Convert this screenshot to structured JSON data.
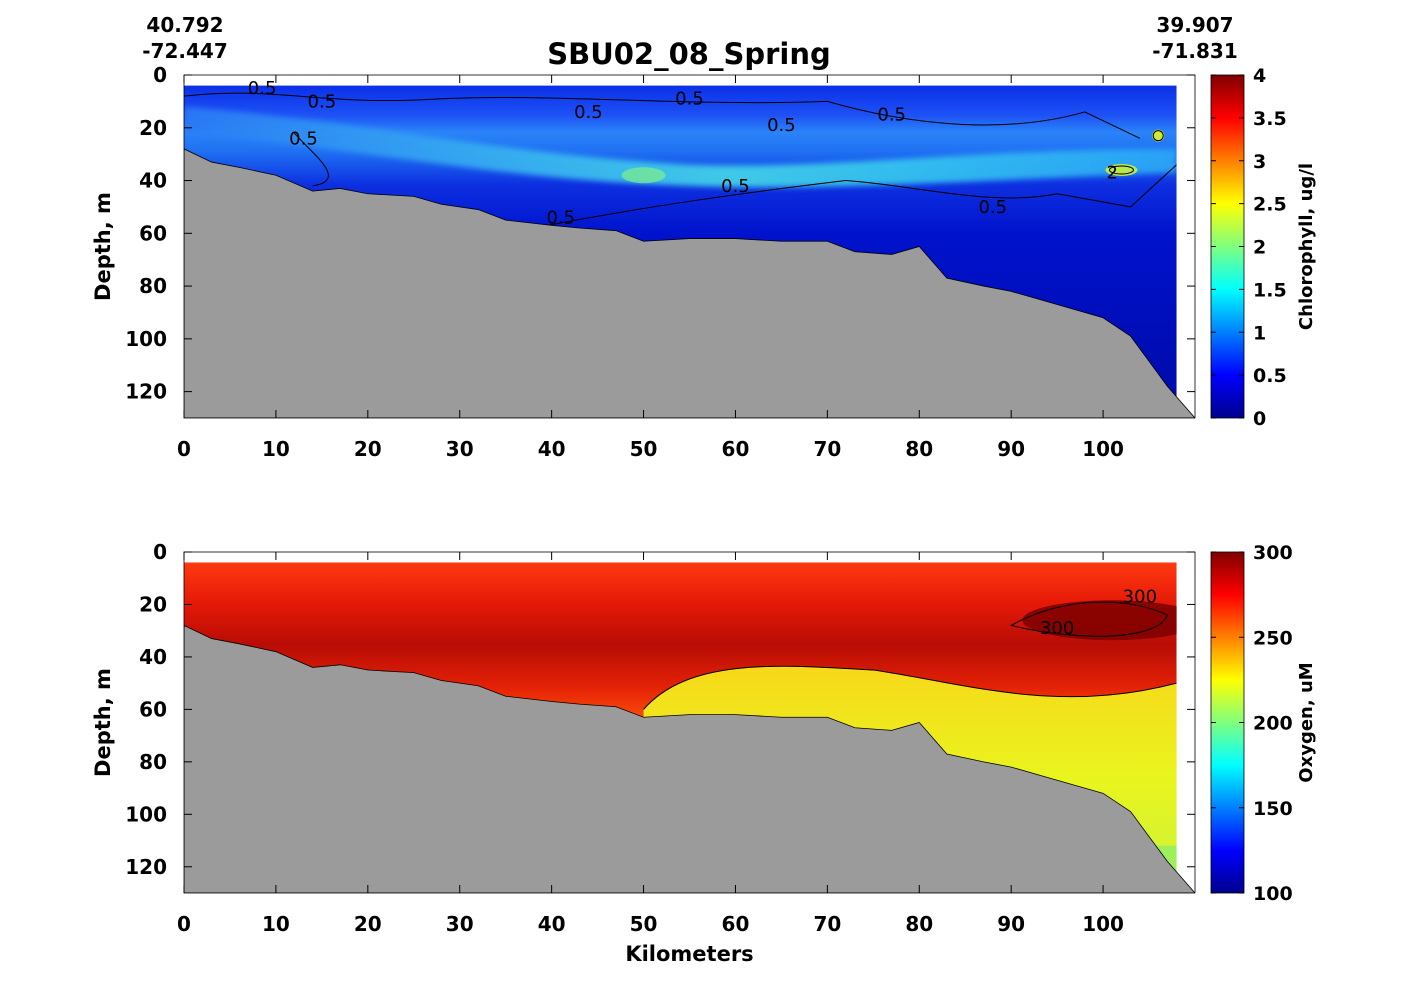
{
  "page": {
    "title": "SBU02_08_Spring",
    "start_lat": "40.792",
    "start_lon": "-72.447",
    "end_lat": "39.907",
    "end_lon": "-71.831"
  },
  "chart_data": [
    {
      "type": "heatmap",
      "title": "SBU02_08_Spring",
      "xlabel": "",
      "ylabel": "Depth, m",
      "colorbar_label": "Chlorophyll, ug/l",
      "xlim": [
        0,
        110
      ],
      "ylim": [
        130,
        0
      ],
      "x_ticks": [
        "0",
        "10",
        "20",
        "30",
        "40",
        "50",
        "60",
        "70",
        "80",
        "90",
        "100"
      ],
      "y_ticks": [
        "0",
        "20",
        "40",
        "60",
        "80",
        "100",
        "120"
      ],
      "colorbar_range": [
        0,
        4
      ],
      "colorbar_ticks": [
        "0",
        "0.5",
        "1",
        "1.5",
        "2",
        "2.5",
        "3",
        "3.5",
        "4"
      ],
      "colormap": "jet",
      "contour_labels": [
        "0.5",
        "0.5",
        "0.5",
        "0.5",
        "0.5",
        "0.5",
        "0.5",
        "0.5",
        "0.5",
        "0.5",
        "2"
      ],
      "bottom_depth": {
        "x": [
          0,
          3,
          6,
          10,
          14,
          17,
          20,
          25,
          28,
          32,
          35,
          40,
          43,
          47,
          50,
          55,
          60,
          65,
          70,
          73,
          77,
          80,
          83,
          87,
          90,
          95,
          100,
          103,
          107,
          110
        ],
        "depth": [
          28,
          33,
          35,
          38,
          44,
          43,
          45,
          46,
          49,
          51,
          55,
          57,
          58,
          59,
          63,
          62,
          62,
          63,
          63,
          67,
          68,
          65,
          77,
          80,
          82,
          87,
          92,
          99,
          118,
          130
        ]
      }
    },
    {
      "type": "heatmap",
      "xlabel": "Kilometers",
      "ylabel": "Depth, m",
      "colorbar_label": "Oxygen, uM",
      "xlim": [
        0,
        110
      ],
      "ylim": [
        130,
        0
      ],
      "x_ticks": [
        "0",
        "10",
        "20",
        "30",
        "40",
        "50",
        "60",
        "70",
        "80",
        "90",
        "100"
      ],
      "y_ticks": [
        "0",
        "20",
        "40",
        "60",
        "80",
        "100",
        "120"
      ],
      "colorbar_range": [
        100,
        300
      ],
      "colorbar_ticks": [
        "100",
        "150",
        "200",
        "250",
        "300"
      ],
      "colormap": "jet",
      "contour_labels": [
        "300",
        "300"
      ],
      "bottom_depth": {
        "x": [
          0,
          3,
          6,
          10,
          14,
          17,
          20,
          25,
          28,
          32,
          35,
          40,
          43,
          47,
          50,
          55,
          60,
          65,
          70,
          73,
          77,
          80,
          83,
          87,
          90,
          95,
          100,
          103,
          107,
          110
        ],
        "depth": [
          28,
          33,
          35,
          38,
          44,
          43,
          45,
          46,
          49,
          51,
          55,
          57,
          58,
          59,
          63,
          62,
          62,
          63,
          63,
          67,
          68,
          65,
          77,
          80,
          82,
          87,
          92,
          99,
          118,
          130
        ]
      }
    }
  ]
}
